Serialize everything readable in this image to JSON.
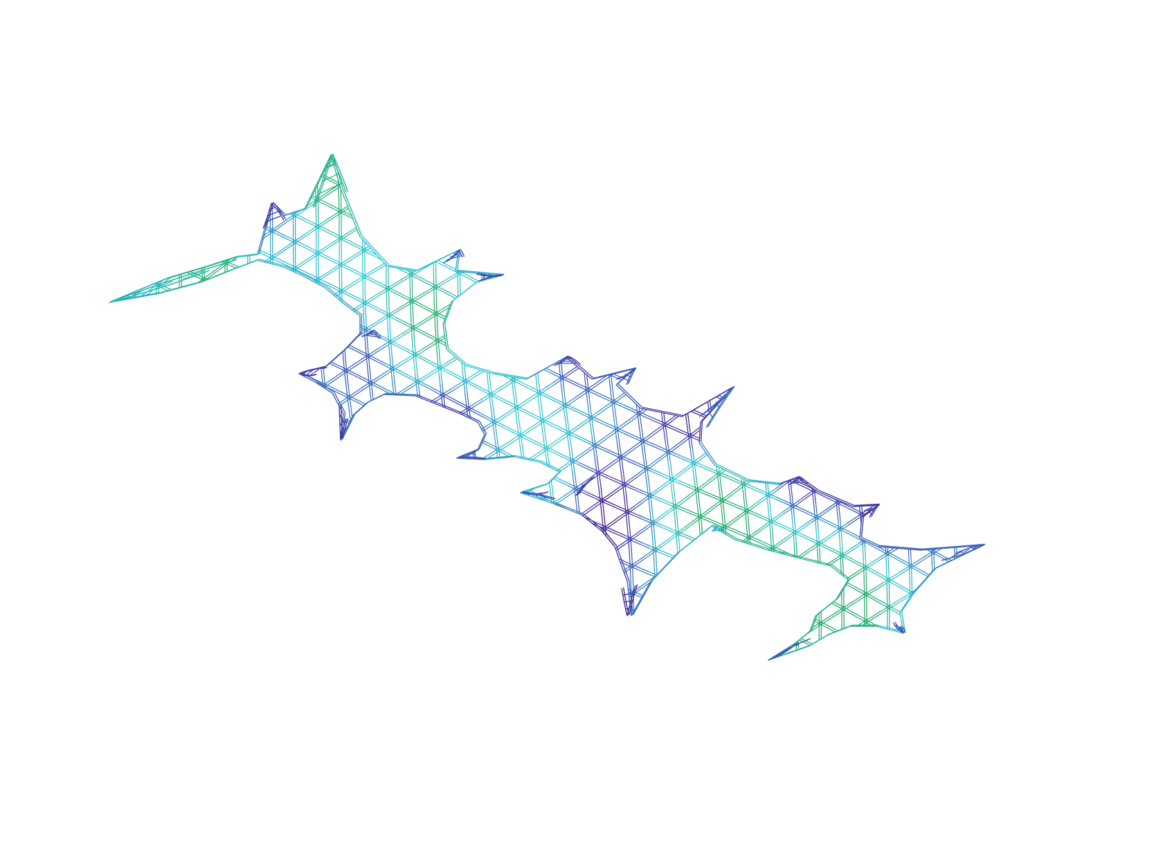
{
  "figure": {
    "subject": "gridshell-wireframe",
    "style": "hexagonal lattice rendered as double-line members"
  },
  "colormap": {
    "name": "viridis-like",
    "stops": [
      "#3f0f70",
      "#4338a8",
      "#3a64b9",
      "#2fa9c9",
      "#33c9d6",
      "#2bb59a",
      "#23a863"
    ]
  },
  "mesh": {
    "lattice": "triangular-hexagonal",
    "shell_segments": 4,
    "boundary_supports": 21
  }
}
